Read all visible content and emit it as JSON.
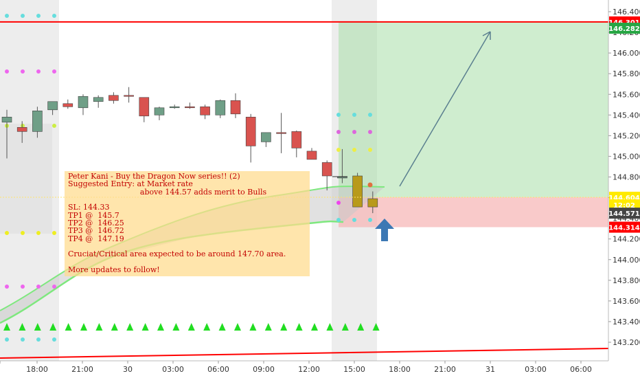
{
  "colors": {
    "up_body": "#6f9f87",
    "down_body": "#d9534f",
    "red_line": "#ff0000",
    "green_line": "#7ee87e",
    "profit_zone": "#a8dfa8",
    "loss_zone": "#f6b3b3",
    "triangle": "#22dd22",
    "session_bg": "#ededed",
    "arrow_up": "#3c78b4",
    "note_text": "#c20000"
  },
  "chart_data": {
    "type": "candlestick",
    "title": "",
    "xlabel": "",
    "ylabel": "",
    "ylim": [
      143.08,
      146.44
    ],
    "y_ticks": [
      "146.400",
      "146.200",
      "146.000",
      "145.800",
      "145.600",
      "145.400",
      "145.200",
      "145.000",
      "144.800",
      "144.600",
      "144.400",
      "144.200",
      "144.000",
      "143.800",
      "143.600",
      "143.400",
      "143.200"
    ],
    "x_ticks": [
      "18:00",
      "21:00",
      "30",
      "03:00",
      "06:00",
      "09:00",
      "12:00",
      "15:00",
      "18:00",
      "21:00",
      "31",
      "03:00",
      "06:00"
    ],
    "price_badges": [
      {
        "label": "146.301",
        "value": 146.301,
        "color": "#ff0000"
      },
      {
        "label": "146.282",
        "value": 146.24,
        "color": "#27a644"
      },
      {
        "label": "144.604",
        "value": 144.604,
        "color": "#ffea00"
      },
      {
        "label": "12:02",
        "value": 144.53,
        "color": "#ffea00"
      },
      {
        "label": "144.571",
        "value": 144.45,
        "color": "#444444"
      },
      {
        "label": "144.314",
        "value": 144.314,
        "color": "#ff0000"
      }
    ],
    "candles": [
      {
        "o": 145.33,
        "h": 145.45,
        "l": 144.98,
        "c": 145.38
      },
      {
        "o": 145.28,
        "h": 145.34,
        "l": 145.13,
        "c": 145.24
      },
      {
        "o": 145.24,
        "h": 145.48,
        "l": 145.18,
        "c": 145.44
      },
      {
        "o": 145.45,
        "h": 145.53,
        "l": 145.4,
        "c": 145.53
      },
      {
        "o": 145.51,
        "h": 145.55,
        "l": 145.46,
        "c": 145.48
      },
      {
        "o": 145.47,
        "h": 145.6,
        "l": 145.4,
        "c": 145.58
      },
      {
        "o": 145.53,
        "h": 145.59,
        "l": 145.47,
        "c": 145.57
      },
      {
        "o": 145.59,
        "h": 145.62,
        "l": 145.51,
        "c": 145.54
      },
      {
        "o": 145.59,
        "h": 145.67,
        "l": 145.52,
        "c": 145.58
      },
      {
        "o": 145.57,
        "h": 145.57,
        "l": 145.33,
        "c": 145.39
      },
      {
        "o": 145.4,
        "h": 145.48,
        "l": 145.35,
        "c": 145.47
      },
      {
        "o": 145.47,
        "h": 145.5,
        "l": 145.46,
        "c": 145.48
      },
      {
        "o": 145.48,
        "h": 145.52,
        "l": 145.46,
        "c": 145.47
      },
      {
        "o": 145.48,
        "h": 145.5,
        "l": 145.36,
        "c": 145.4
      },
      {
        "o": 145.4,
        "h": 145.55,
        "l": 145.37,
        "c": 145.54
      },
      {
        "o": 145.54,
        "h": 145.61,
        "l": 145.37,
        "c": 145.41
      },
      {
        "o": 145.38,
        "h": 145.41,
        "l": 144.94,
        "c": 145.1
      },
      {
        "o": 145.14,
        "h": 145.23,
        "l": 145.09,
        "c": 145.23
      },
      {
        "o": 145.23,
        "h": 145.42,
        "l": 145.03,
        "c": 145.22
      },
      {
        "o": 145.24,
        "h": 145.25,
        "l": 144.99,
        "c": 145.08
      },
      {
        "o": 145.05,
        "h": 145.08,
        "l": 144.97,
        "c": 144.97
      },
      {
        "o": 144.94,
        "h": 144.96,
        "l": 144.67,
        "c": 144.81
      },
      {
        "o": 144.8,
        "h": 145.07,
        "l": 144.74,
        "c": 144.8
      },
      {
        "o": 144.81,
        "h": 144.84,
        "l": 144.51,
        "c": 144.51
      },
      {
        "o": 144.51,
        "h": 144.66,
        "l": 144.45,
        "c": 144.59
      }
    ],
    "levels": [
      {
        "name": "take-profit",
        "value": 146.301
      },
      {
        "name": "entry",
        "value": 144.604
      },
      {
        "name": "stop-loss",
        "value": 144.314
      }
    ]
  },
  "note": {
    "line1": "Peter Kani - Buy the Dragon Now series!! (2)",
    "line2": "Suggested Entry: at Market rate",
    "line3": "                              above 144.57 adds merit to Bulls",
    "line4": "SL: 144.33",
    "line5": "TP1 @  145.7",
    "line6": "TP2 @  146.25",
    "line7": "TP3 @  146.72",
    "line8": "TP4 @  147.19",
    "line9": "Cruciat/Critical area expected to be around 147.70 area.",
    "line10": "More updates to follow!"
  }
}
